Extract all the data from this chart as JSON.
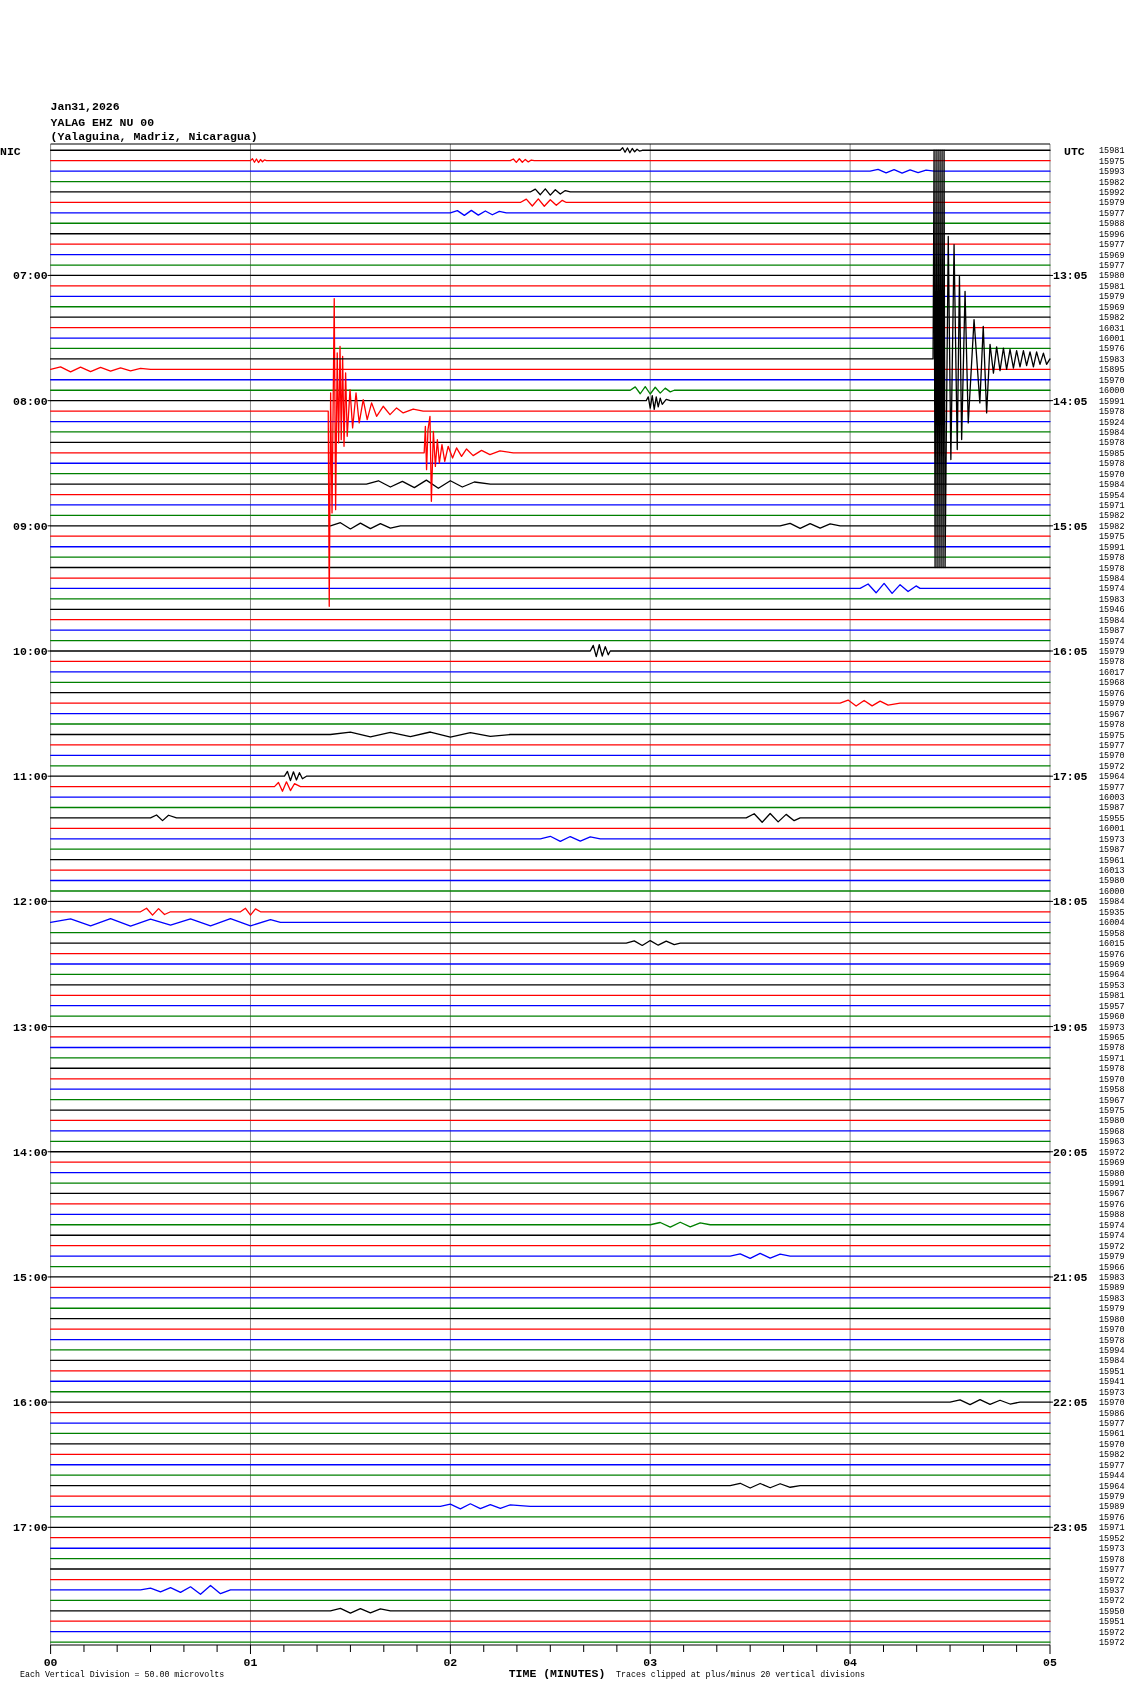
{
  "chart_data": {
    "type": "line",
    "title": "Jan31,2026",
    "subtitle": "YALAG EHZ NU 00\n(Yalaguina, Madriz, Nicaragua)",
    "xlabel": "TIME (MINUTES)",
    "ylabel": "NIC",
    "y2label": "UTC",
    "annotations": [
      "15981",
      "15975",
      "15993",
      "15982",
      "15992",
      "15979",
      "15977",
      "15988",
      "15996",
      "15977",
      "15969",
      "15977",
      "15980",
      "15981",
      "15979",
      "15969",
      "15982",
      "16031",
      "16001",
      "15976",
      "15983",
      "15895",
      "15970",
      "16000",
      "15991",
      "15978",
      "15924",
      "15984",
      "15978",
      "15985",
      "15978",
      "15970",
      "15984",
      "15954",
      "15971",
      "15982",
      "15982",
      "15975",
      "15991",
      "15978",
      "15978",
      "15984",
      "15974",
      "15983",
      "15946",
      "15984",
      "15987",
      "15974",
      "15979",
      "15978",
      "16017",
      "15968",
      "15976",
      "15979",
      "15967",
      "15978",
      "15975",
      "15977",
      "15970",
      "15972",
      "15964",
      "15977",
      "16003",
      "15987",
      "15955",
      "16001",
      "15973",
      "15987",
      "15961",
      "16013",
      "15980",
      "16000",
      "15984",
      "15935",
      "16004",
      "15958",
      "16015",
      "15976",
      "15969",
      "15964",
      "15953",
      "15981",
      "15957",
      "15960",
      "15973",
      "15965",
      "15978",
      "15971",
      "15978",
      "15970",
      "15958",
      "15967",
      "15975",
      "15980",
      "15968",
      "15963",
      "15972",
      "15969",
      "15980",
      "15991",
      "15967",
      "15976",
      "15988",
      "15974",
      "15974",
      "15972",
      "15979",
      "15966",
      "15983",
      "15989",
      "15983",
      "15979",
      "15980",
      "15970",
      "15978",
      "15994",
      "15984",
      "15951",
      "15941",
      "15973",
      "15970",
      "15986",
      "15977",
      "15961",
      "15970",
      "15982",
      "15977",
      "15944",
      "15964",
      "15979",
      "15989",
      "15976",
      "15971",
      "15952",
      "15973",
      "15978",
      "15977",
      "15972",
      "15937",
      "15972",
      "15950",
      "15951",
      "15972",
      "15972",
      "Each Vertical Division = 50.00 microvolts",
      "Traces clipped at plus/minus 20 vertical divisions"
    ],
    "x": [
      0,
      5
    ],
    "xlim": [
      0,
      5
    ],
    "xticks": [
      {
        "value": 0,
        "label": "00"
      },
      {
        "value": 0.167,
        "label": null
      },
      {
        "value": 0.333,
        "label": null
      },
      {
        "value": 0.5,
        "label": null
      },
      {
        "value": 0.667,
        "label": null
      },
      {
        "value": 0.833,
        "label": null
      },
      {
        "value": 1,
        "label": "01"
      },
      {
        "value": 1.167,
        "label": null
      },
      {
        "value": 1.333,
        "label": null
      },
      {
        "value": 1.5,
        "label": null
      },
      {
        "value": 1.667,
        "label": null
      },
      {
        "value": 1.833,
        "label": null
      },
      {
        "value": 2,
        "label": "02"
      },
      {
        "value": 2.167,
        "label": null
      },
      {
        "value": 2.333,
        "label": null
      },
      {
        "value": 2.5,
        "label": null
      },
      {
        "value": 2.667,
        "label": null
      },
      {
        "value": 2.833,
        "label": null
      },
      {
        "value": 3,
        "label": "03"
      },
      {
        "value": 3.167,
        "label": null
      },
      {
        "value": 3.333,
        "label": null
      },
      {
        "value": 3.5,
        "label": null
      },
      {
        "value": 3.667,
        "label": null
      },
      {
        "value": 3.833,
        "label": null
      },
      {
        "value": 4,
        "label": "04"
      },
      {
        "value": 4.167,
        "label": null
      },
      {
        "value": 4.333,
        "label": null
      },
      {
        "value": 4.5,
        "label": null
      },
      {
        "value": 4.667,
        "label": null
      },
      {
        "value": 4.833,
        "label": null
      },
      {
        "value": 5,
        "label": "05"
      }
    ],
    "ylim": [
      17.94,
      5.95
    ],
    "yticks": [
      {
        "value": 7,
        "label": "07:00"
      },
      {
        "value": 8,
        "label": "08:00"
      },
      {
        "value": 9,
        "label": "09:00"
      },
      {
        "value": 10,
        "label": "10:00"
      },
      {
        "value": 11,
        "label": "11:00"
      },
      {
        "value": 12,
        "label": "12:00"
      },
      {
        "value": 13,
        "label": "13:00"
      },
      {
        "value": 14,
        "label": "14:00"
      },
      {
        "value": 15,
        "label": "15:00"
      },
      {
        "value": 16,
        "label": "16:00"
      },
      {
        "value": 17,
        "label": "17:00"
      }
    ],
    "y2lim": [
      24.023,
      12.033
    ],
    "y2ticks": [
      {
        "value": 13.083,
        "label": "13:05"
      },
      {
        "value": 14.083,
        "label": "14:05"
      },
      {
        "value": 15.083,
        "label": "15:05"
      },
      {
        "value": 16.083,
        "label": "16:05"
      },
      {
        "value": 17.083,
        "label": "17:05"
      },
      {
        "value": 18.083,
        "label": "18:05"
      },
      {
        "value": 19.083,
        "label": "19:05"
      },
      {
        "value": 20.083,
        "label": "20:05"
      },
      {
        "value": 21.083,
        "label": "21:05"
      },
      {
        "value": 22.083,
        "label": "22:05"
      },
      {
        "value": 23.083,
        "label": "23:05"
      }
    ],
    "grid": "x",
    "line_style": "solid",
    "series": [
      {
        "color": "#000000",
        "x": [
          0,
          2.85,
          2.862,
          2.874,
          2.886,
          2.898,
          2.91,
          2.922,
          2.934,
          2.946,
          2.96,
          5
        ],
        "values": [
          6,
          6,
          5.98,
          6.016,
          5.982,
          6.02,
          5.986,
          6.012,
          5.992,
          6.006,
          6,
          6
        ]
      },
      {
        "color": "#ff0000",
        "x": [
          0,
          1.0,
          1.01,
          1.02,
          1.03,
          1.04,
          1.05,
          1.06,
          1.07,
          1.08,
          2.3,
          2.315,
          2.33,
          2.345,
          2.36,
          2.375,
          2.39,
          2.405,
          2.42,
          5
        ],
        "values": [
          6.083,
          6.083,
          6.068,
          6.096,
          6.07,
          6.098,
          6.074,
          6.092,
          6.077,
          6.083,
          6.083,
          6.07,
          6.097,
          6.068,
          6.096,
          6.073,
          6.093,
          6.078,
          6.083,
          6.083
        ]
      },
      {
        "color": "#0000ff",
        "x": [
          0,
          4.1,
          4.14,
          4.18,
          4.22,
          4.26,
          4.3,
          4.34,
          4.38,
          4.42,
          5
        ],
        "values": [
          6.167,
          6.167,
          6.152,
          6.18,
          6.154,
          6.182,
          6.156,
          6.178,
          6.158,
          6.167,
          6.167
        ]
      },
      {
        "color": "#008000",
        "values": [
          6.25,
          6.25
        ]
      },
      {
        "color": "#000000",
        "x": [
          0,
          2.4,
          2.425,
          2.45,
          2.475,
          2.5,
          2.525,
          2.55,
          2.575,
          2.6,
          5
        ],
        "values": [
          6.333,
          6.333,
          6.31,
          6.355,
          6.308,
          6.358,
          6.315,
          6.35,
          6.322,
          6.333,
          6.333
        ]
      },
      {
        "color": "#ff0000",
        "x": [
          0,
          2.35,
          2.38,
          2.41,
          2.44,
          2.47,
          2.5,
          2.53,
          2.56,
          2.58,
          5
        ],
        "values": [
          6.417,
          6.417,
          6.39,
          6.445,
          6.388,
          6.447,
          6.395,
          6.44,
          6.4,
          6.417,
          6.417
        ]
      },
      {
        "color": "#0000ff",
        "x": [
          0,
          2.0,
          2.035,
          2.07,
          2.105,
          2.14,
          2.175,
          2.21,
          2.245,
          2.28,
          5
        ],
        "values": [
          6.5,
          6.5,
          6.482,
          6.52,
          6.48,
          6.518,
          6.485,
          6.515,
          6.488,
          6.5,
          6.5
        ]
      },
      {
        "color": "#008000",
        "values": [
          6.583,
          6.583
        ]
      },
      {
        "color": "#000000",
        "values": [
          6.667,
          6.667
        ]
      },
      {
        "color": "#ff0000",
        "values": [
          6.75,
          6.75
        ]
      },
      {
        "color": "#0000ff",
        "values": [
          6.833,
          6.833
        ]
      },
      {
        "color": "#008000",
        "values": [
          6.917,
          6.917
        ]
      },
      {
        "color": "#000000",
        "values": [
          7,
          7
        ]
      },
      {
        "color": "#ff0000",
        "values": [
          7.083,
          7.083
        ]
      },
      {
        "color": "#0000ff",
        "values": [
          7.167,
          7.167
        ]
      },
      {
        "color": "#008000",
        "values": [
          7.25,
          7.25
        ]
      },
      {
        "color": "#000000",
        "values": [
          7.333,
          7.333
        ]
      },
      {
        "color": "#ff0000",
        "values": [
          7.417,
          7.417
        ]
      },
      {
        "color": "#0000ff",
        "values": [
          7.5,
          7.5
        ]
      },
      {
        "color": "#008000",
        "values": [
          7.583,
          7.583
        ]
      },
      {
        "color": "#000000",
        "x": [
          0,
          4.415,
          4.42,
          4.425,
          4.43,
          4.435,
          4.44,
          4.445,
          4.45,
          4.455,
          4.46,
          4.465,
          4.47,
          4.475,
          4.491,
          4.504,
          4.52,
          4.536,
          4.547,
          4.558,
          4.575,
          4.591,
          4.62,
          4.649,
          4.666,
          4.683,
          4.7,
          4.717,
          4.733,
          4.75,
          4.767,
          4.783,
          4.8,
          4.817,
          4.833,
          4.85,
          4.867,
          4.883,
          4.9,
          4.917,
          4.933,
          4.95,
          4.967,
          4.983,
          5
        ],
        "values": [
          7.667,
          7.667,
          6.0,
          9.333,
          6.0,
          9.333,
          6.0,
          9.333,
          6.0,
          9.333,
          6.0,
          9.333,
          6.0,
          9.333,
          6.688,
          8.471,
          6.754,
          8.391,
          7.007,
          8.311,
          7.127,
          8.178,
          7.353,
          8.018,
          7.407,
          8.098,
          7.55,
          7.78,
          7.57,
          7.76,
          7.58,
          7.75,
          7.59,
          7.74,
          7.6,
          7.73,
          7.6,
          7.72,
          7.61,
          7.73,
          7.61,
          7.71,
          7.62,
          7.71,
          7.667
        ]
      },
      {
        "color": "#ff0000",
        "x": [
          0,
          0.05,
          0.1,
          0.15,
          0.2,
          0.25,
          0.3,
          0.35,
          0.4,
          0.45,
          0.5,
          5
        ],
        "values": [
          7.75,
          7.73,
          7.77,
          7.732,
          7.768,
          7.735,
          7.765,
          7.738,
          7.762,
          7.742,
          7.75,
          7.75
        ]
      },
      {
        "color": "#0000ff",
        "values": [
          7.833,
          7.833
        ]
      },
      {
        "color": "#008000",
        "x": [
          0,
          2.9,
          2.925,
          2.95,
          2.975,
          3.0,
          3.025,
          3.05,
          3.075,
          3.1,
          3.12,
          5
        ],
        "values": [
          7.917,
          7.917,
          7.89,
          7.945,
          7.888,
          7.947,
          7.893,
          7.94,
          7.9,
          7.93,
          7.917,
          7.917
        ]
      },
      {
        "color": "#000000",
        "x": [
          0,
          2.98,
          2.99,
          3.0,
          3.01,
          3.02,
          3.03,
          3.04,
          3.05,
          3.06,
          3.08,
          3.1,
          5
        ],
        "values": [
          8,
          8,
          7.97,
          8.06,
          7.96,
          8.07,
          7.97,
          8.05,
          7.98,
          8.03,
          7.99,
          8,
          8
        ]
      },
      {
        "color": "#ff0000",
        "x": [
          0,
          1.389,
          1.394,
          1.401,
          1.408,
          1.419,
          1.426,
          1.434,
          1.441,
          1.448,
          1.454,
          1.461,
          1.468,
          1.476,
          1.484,
          1.498,
          1.511,
          1.528,
          1.544,
          1.564,
          1.584,
          1.606,
          1.631,
          1.664,
          1.698,
          1.731,
          1.764,
          1.814,
          1.864,
          5
        ],
        "values": [
          8.083,
          8.083,
          9.643,
          7.939,
          8.897,
          7.185,
          8.871,
          7.619,
          8.338,
          7.566,
          8.312,
          7.646,
          8.365,
          7.779,
          8.285,
          7.912,
          8.218,
          7.939,
          8.178,
          7.992,
          8.152,
          8.018,
          8.125,
          8.045,
          8.112,
          8.058,
          8.098,
          8.067,
          8.083,
          8.083
        ]
      },
      {
        "color": "#0000ff",
        "values": [
          8.167,
          8.167
        ]
      },
      {
        "color": "#008000",
        "values": [
          8.25,
          8.25
        ]
      },
      {
        "color": "#000000",
        "values": [
          8.333,
          8.333
        ]
      },
      {
        "color": "#ff0000",
        "x": [
          0,
          1.869,
          1.875,
          1.881,
          1.888,
          1.898,
          1.905,
          1.915,
          1.925,
          1.935,
          1.945,
          1.958,
          1.972,
          1.989,
          2.011,
          2.031,
          2.056,
          2.081,
          2.114,
          2.156,
          2.198,
          2.248,
          2.315,
          5
        ],
        "values": [
          8.417,
          8.417,
          8.205,
          8.551,
          8.232,
          8.125,
          8.804,
          8.245,
          8.525,
          8.312,
          8.498,
          8.352,
          8.485,
          8.365,
          8.458,
          8.378,
          8.445,
          8.386,
          8.439,
          8.397,
          8.431,
          8.402,
          8.417,
          8.417
        ]
      },
      {
        "color": "#0000ff",
        "values": [
          8.5,
          8.5
        ]
      },
      {
        "color": "#008000",
        "values": [
          8.583,
          8.583
        ]
      },
      {
        "color": "#000000",
        "x": [
          0,
          1.58,
          1.64,
          1.7,
          1.76,
          1.82,
          1.88,
          1.94,
          2.0,
          2.06,
          2.12,
          2.2,
          5
        ],
        "values": [
          8.667,
          8.667,
          8.64,
          8.69,
          8.645,
          8.695,
          8.635,
          8.7,
          8.64,
          8.69,
          8.65,
          8.667,
          8.667
        ]
      },
      {
        "color": "#ff0000",
        "values": [
          8.75,
          8.75
        ]
      },
      {
        "color": "#0000ff",
        "values": [
          8.833,
          8.833
        ]
      },
      {
        "color": "#008000",
        "values": [
          8.917,
          8.917
        ]
      },
      {
        "color": "#000000",
        "x": [
          0,
          1.4,
          1.45,
          1.5,
          1.55,
          1.6,
          1.65,
          1.7,
          1.75,
          3.65,
          3.7,
          3.75,
          3.8,
          3.85,
          3.9,
          3.95,
          5
        ],
        "values": [
          9,
          9,
          8.975,
          9.025,
          8.978,
          9.022,
          8.982,
          9.018,
          9,
          9,
          8.98,
          9.02,
          8.982,
          9.018,
          8.985,
          9,
          9
        ]
      },
      {
        "color": "#ff0000",
        "values": [
          9.083,
          9.083
        ]
      },
      {
        "color": "#0000ff",
        "values": [
          9.167,
          9.167
        ]
      },
      {
        "color": "#008000",
        "values": [
          9.25,
          9.25
        ]
      },
      {
        "color": "#000000",
        "values": [
          9.333,
          9.333
        ]
      },
      {
        "color": "#ff0000",
        "values": [
          9.417,
          9.417
        ]
      },
      {
        "color": "#0000ff",
        "x": [
          0,
          4.05,
          4.09,
          4.13,
          4.17,
          4.21,
          4.25,
          4.29,
          4.33,
          4.35,
          5
        ],
        "values": [
          9.5,
          9.5,
          9.465,
          9.535,
          9.46,
          9.54,
          9.47,
          9.525,
          9.48,
          9.5,
          9.5
        ]
      },
      {
        "color": "#008000",
        "values": [
          9.583,
          9.583
        ]
      },
      {
        "color": "#000000",
        "values": [
          9.667,
          9.667
        ]
      },
      {
        "color": "#ff0000",
        "values": [
          9.75,
          9.75
        ]
      },
      {
        "color": "#0000ff",
        "values": [
          9.833,
          9.833
        ]
      },
      {
        "color": "#008000",
        "values": [
          9.917,
          9.917
        ]
      },
      {
        "color": "#000000",
        "x": [
          0,
          2.7,
          2.715,
          2.73,
          2.745,
          2.76,
          2.775,
          2.79,
          2.8,
          5
        ],
        "values": [
          10,
          10,
          9.955,
          10.045,
          9.95,
          10.04,
          9.965,
          10.03,
          10,
          10
        ]
      },
      {
        "color": "#ff0000",
        "values": [
          10.083,
          10.083
        ]
      },
      {
        "color": "#0000ff",
        "values": [
          10.167,
          10.167
        ]
      },
      {
        "color": "#008000",
        "values": [
          10.25,
          10.25
        ]
      },
      {
        "color": "#000000",
        "values": [
          10.333,
          10.333
        ]
      },
      {
        "color": "#ff0000",
        "x": [
          0,
          3.95,
          3.99,
          4.03,
          4.07,
          4.11,
          4.15,
          4.19,
          4.25,
          5
        ],
        "values": [
          10.417,
          10.417,
          10.392,
          10.44,
          10.395,
          10.438,
          10.4,
          10.432,
          10.417,
          10.417
        ]
      },
      {
        "color": "#0000ff",
        "values": [
          10.5,
          10.5
        ]
      },
      {
        "color": "#008000",
        "values": [
          10.583,
          10.583
        ]
      },
      {
        "color": "#000000",
        "x": [
          0,
          1.4,
          1.5,
          1.6,
          1.7,
          1.8,
          1.9,
          2.0,
          2.1,
          2.2,
          2.3,
          5
        ],
        "values": [
          10.667,
          10.667,
          10.648,
          10.686,
          10.65,
          10.684,
          10.647,
          10.688,
          10.652,
          10.682,
          10.667,
          10.667
        ]
      },
      {
        "color": "#ff0000",
        "values": [
          10.75,
          10.75
        ]
      },
      {
        "color": "#0000ff",
        "values": [
          10.833,
          10.833
        ]
      },
      {
        "color": "#008000",
        "values": [
          10.917,
          10.917
        ]
      },
      {
        "color": "#000000",
        "x": [
          0,
          1.17,
          1.185,
          1.2,
          1.215,
          1.23,
          1.245,
          1.26,
          1.28,
          5
        ],
        "values": [
          11,
          11,
          10.962,
          11.035,
          10.965,
          11.03,
          10.972,
          11.02,
          11,
          11
        ]
      },
      {
        "color": "#ff0000",
        "x": [
          0,
          1.12,
          1.14,
          1.16,
          1.18,
          1.2,
          1.22,
          1.25,
          5
        ],
        "values": [
          11.083,
          11.083,
          11.05,
          11.12,
          11.045,
          11.115,
          11.06,
          11.083,
          11.083
        ]
      },
      {
        "color": "#0000ff",
        "values": [
          11.167,
          11.167
        ]
      },
      {
        "color": "#008000",
        "values": [
          11.25,
          11.25
        ]
      },
      {
        "color": "#000000",
        "x": [
          0,
          0.5,
          0.53,
          0.56,
          0.59,
          0.63,
          3.48,
          3.52,
          3.56,
          3.6,
          3.64,
          3.68,
          3.72,
          3.75,
          5
        ],
        "values": [
          11.333,
          11.333,
          11.31,
          11.355,
          11.312,
          11.333,
          11.333,
          11.3,
          11.368,
          11.298,
          11.365,
          11.305,
          11.355,
          11.333,
          11.333
        ]
      },
      {
        "color": "#ff0000",
        "values": [
          11.417,
          11.417
        ]
      },
      {
        "color": "#0000ff",
        "x": [
          0,
          2.45,
          2.5,
          2.55,
          2.6,
          2.65,
          2.7,
          2.75,
          5
        ],
        "values": [
          11.5,
          11.5,
          11.48,
          11.52,
          11.482,
          11.518,
          11.485,
          11.5,
          11.5
        ]
      },
      {
        "color": "#008000",
        "values": [
          11.583,
          11.583
        ]
      },
      {
        "color": "#000000",
        "values": [
          11.667,
          11.667
        ]
      },
      {
        "color": "#ff0000",
        "values": [
          11.75,
          11.75
        ]
      },
      {
        "color": "#0000ff",
        "values": [
          11.833,
          11.833
        ]
      },
      {
        "color": "#008000",
        "values": [
          11.917,
          11.917
        ]
      },
      {
        "color": "#000000",
        "values": [
          12,
          12
        ]
      },
      {
        "color": "#ff0000",
        "x": [
          0,
          0.45,
          0.48,
          0.51,
          0.54,
          0.57,
          0.6,
          0.95,
          0.975,
          1.0,
          1.025,
          1.05,
          5
        ],
        "values": [
          12.083,
          12.083,
          12.055,
          12.11,
          12.058,
          12.105,
          12.083,
          12.083,
          12.055,
          12.11,
          12.06,
          12.083,
          12.083
        ]
      },
      {
        "color": "#0000ff",
        "x": [
          0,
          0.1,
          0.2,
          0.3,
          0.4,
          0.5,
          0.6,
          0.7,
          0.8,
          0.9,
          1.0,
          1.1,
          1.15,
          5
        ],
        "values": [
          12.167,
          12.14,
          12.195,
          12.138,
          12.197,
          12.142,
          12.19,
          12.14,
          12.195,
          12.138,
          12.195,
          12.145,
          12.167,
          12.167
        ]
      },
      {
        "color": "#008000",
        "values": [
          12.25,
          12.25
        ]
      },
      {
        "color": "#000000",
        "x": [
          0,
          2.88,
          2.92,
          2.96,
          3.0,
          3.04,
          3.08,
          3.12,
          3.15,
          5
        ],
        "values": [
          12.333,
          12.333,
          12.315,
          12.352,
          12.313,
          12.35,
          12.318,
          12.345,
          12.333,
          12.333
        ]
      },
      {
        "color": "#ff0000",
        "values": [
          12.417,
          12.417
        ]
      },
      {
        "color": "#0000ff",
        "values": [
          12.5,
          12.5
        ]
      },
      {
        "color": "#008000",
        "values": [
          12.583,
          12.583
        ]
      },
      {
        "color": "#000000",
        "values": [
          12.667,
          12.667
        ]
      },
      {
        "color": "#ff0000",
        "values": [
          12.75,
          12.75
        ]
      },
      {
        "color": "#0000ff",
        "values": [
          12.833,
          12.833
        ]
      },
      {
        "color": "#008000",
        "values": [
          12.917,
          12.917
        ]
      },
      {
        "color": "#000000",
        "values": [
          13,
          13
        ]
      },
      {
        "color": "#ff0000",
        "values": [
          13.083,
          13.083
        ]
      },
      {
        "color": "#0000ff",
        "values": [
          13.167,
          13.167
        ]
      },
      {
        "color": "#008000",
        "values": [
          13.25,
          13.25
        ]
      },
      {
        "color": "#000000",
        "values": [
          13.333,
          13.333
        ]
      },
      {
        "color": "#ff0000",
        "values": [
          13.417,
          13.417
        ]
      },
      {
        "color": "#0000ff",
        "values": [
          13.5,
          13.5
        ]
      },
      {
        "color": "#008000",
        "values": [
          13.583,
          13.583
        ]
      },
      {
        "color": "#000000",
        "values": [
          13.667,
          13.667
        ]
      },
      {
        "color": "#ff0000",
        "values": [
          13.75,
          13.75
        ]
      },
      {
        "color": "#0000ff",
        "values": [
          13.833,
          13.833
        ]
      },
      {
        "color": "#008000",
        "values": [
          13.917,
          13.917
        ]
      },
      {
        "color": "#000000",
        "values": [
          14,
          14
        ]
      },
      {
        "color": "#ff0000",
        "values": [
          14.083,
          14.083
        ]
      },
      {
        "color": "#0000ff",
        "values": [
          14.167,
          14.167
        ]
      },
      {
        "color": "#008000",
        "values": [
          14.25,
          14.25
        ]
      },
      {
        "color": "#000000",
        "values": [
          14.333,
          14.333
        ]
      },
      {
        "color": "#ff0000",
        "values": [
          14.417,
          14.417
        ]
      },
      {
        "color": "#0000ff",
        "values": [
          14.5,
          14.5
        ]
      },
      {
        "color": "#008000",
        "x": [
          0,
          3.0,
          3.05,
          3.1,
          3.15,
          3.2,
          3.25,
          3.3,
          5
        ],
        "values": [
          14.583,
          14.583,
          14.565,
          14.602,
          14.563,
          14.6,
          14.568,
          14.583,
          14.583
        ]
      },
      {
        "color": "#000000",
        "values": [
          14.667,
          14.667
        ]
      },
      {
        "color": "#ff0000",
        "values": [
          14.75,
          14.75
        ]
      },
      {
        "color": "#0000ff",
        "x": [
          0,
          3.4,
          3.45,
          3.5,
          3.55,
          3.6,
          3.65,
          3.7,
          5
        ],
        "values": [
          14.833,
          14.833,
          14.815,
          14.852,
          14.812,
          14.85,
          14.818,
          14.833,
          14.833
        ]
      },
      {
        "color": "#008000",
        "values": [
          14.917,
          14.917
        ]
      },
      {
        "color": "#000000",
        "values": [
          15,
          15
        ]
      },
      {
        "color": "#ff0000",
        "values": [
          15.083,
          15.083
        ]
      },
      {
        "color": "#0000ff",
        "values": [
          15.167,
          15.167
        ]
      },
      {
        "color": "#008000",
        "values": [
          15.25,
          15.25
        ]
      },
      {
        "color": "#000000",
        "values": [
          15.333,
          15.333
        ]
      },
      {
        "color": "#ff0000",
        "values": [
          15.417,
          15.417
        ]
      },
      {
        "color": "#0000ff",
        "values": [
          15.5,
          15.5
        ]
      },
      {
        "color": "#008000",
        "values": [
          15.583,
          15.583
        ]
      },
      {
        "color": "#000000",
        "values": [
          15.667,
          15.667
        ]
      },
      {
        "color": "#ff0000",
        "values": [
          15.75,
          15.75
        ]
      },
      {
        "color": "#0000ff",
        "values": [
          15.833,
          15.833
        ]
      },
      {
        "color": "#008000",
        "values": [
          15.917,
          15.917
        ]
      },
      {
        "color": "#000000",
        "x": [
          0,
          4.5,
          4.55,
          4.6,
          4.65,
          4.7,
          4.75,
          4.8,
          4.85,
          5
        ],
        "values": [
          16,
          16,
          15.982,
          16.02,
          15.98,
          16.018,
          15.985,
          16.015,
          16,
          16
        ]
      },
      {
        "color": "#ff0000",
        "values": [
          16.083,
          16.083
        ]
      },
      {
        "color": "#0000ff",
        "values": [
          16.167,
          16.167
        ]
      },
      {
        "color": "#008000",
        "values": [
          16.25,
          16.25
        ]
      },
      {
        "color": "#000000",
        "values": [
          16.333,
          16.333
        ]
      },
      {
        "color": "#ff0000",
        "values": [
          16.417,
          16.417
        ]
      },
      {
        "color": "#0000ff",
        "values": [
          16.5,
          16.5
        ]
      },
      {
        "color": "#008000",
        "values": [
          16.583,
          16.583
        ]
      },
      {
        "color": "#000000",
        "x": [
          0,
          3.4,
          3.45,
          3.5,
          3.55,
          3.6,
          3.65,
          3.7,
          3.75,
          5
        ],
        "values": [
          16.667,
          16.667,
          16.648,
          16.686,
          16.65,
          16.684,
          16.652,
          16.68,
          16.667,
          16.667
        ]
      },
      {
        "color": "#ff0000",
        "values": [
          16.75,
          16.75
        ]
      },
      {
        "color": "#0000ff",
        "x": [
          0,
          1.95,
          2.0,
          2.05,
          2.1,
          2.15,
          2.2,
          2.25,
          2.3,
          2.4,
          5
        ],
        "values": [
          16.833,
          16.833,
          16.815,
          16.852,
          16.812,
          16.85,
          16.818,
          16.848,
          16.82,
          16.833,
          16.833
        ]
      },
      {
        "color": "#008000",
        "values": [
          16.917,
          16.917
        ]
      },
      {
        "color": "#000000",
        "values": [
          17,
          17
        ]
      },
      {
        "color": "#ff0000",
        "values": [
          17.083,
          17.083
        ]
      },
      {
        "color": "#0000ff",
        "values": [
          17.167,
          17.167
        ]
      },
      {
        "color": "#008000",
        "values": [
          17.25,
          17.25
        ]
      },
      {
        "color": "#000000",
        "values": [
          17.333,
          17.333
        ]
      },
      {
        "color": "#ff0000",
        "values": [
          17.417,
          17.417
        ]
      },
      {
        "color": "#0000ff",
        "x": [
          0,
          0.45,
          0.5,
          0.55,
          0.6,
          0.65,
          0.7,
          0.75,
          0.8,
          0.85,
          0.9,
          5
        ],
        "values": [
          17.5,
          17.5,
          17.485,
          17.515,
          17.482,
          17.52,
          17.475,
          17.535,
          17.465,
          17.53,
          17.5,
          17.5
        ]
      },
      {
        "color": "#008000",
        "values": [
          17.583,
          17.583
        ]
      },
      {
        "color": "#000000",
        "x": [
          0,
          1.4,
          1.45,
          1.5,
          1.55,
          1.6,
          1.65,
          1.7,
          5
        ],
        "values": [
          17.667,
          17.667,
          17.648,
          17.686,
          17.65,
          17.684,
          17.652,
          17.667,
          17.667
        ]
      },
      {
        "color": "#ff0000",
        "values": [
          17.75,
          17.75
        ]
      },
      {
        "color": "#0000ff",
        "values": [
          17.833,
          17.833
        ]
      },
      {
        "color": "#008000",
        "values": [
          17.917,
          17.917
        ]
      }
    ]
  }
}
